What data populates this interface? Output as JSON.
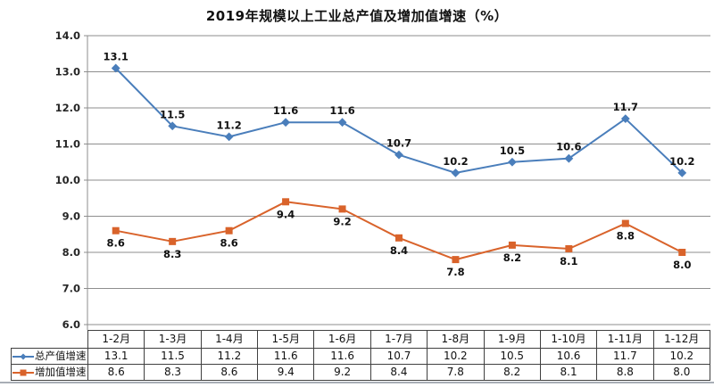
{
  "chart_data": {
    "type": "line",
    "title": "2019年规模以上工业总产值及增加值增速（%）",
    "categories": [
      "1-2月",
      "1-3月",
      "1-4月",
      "1-5月",
      "1-6月",
      "1-7月",
      "1-8月",
      "1-9月",
      "1-10月",
      "1-11月",
      "1-12月"
    ],
    "series": [
      {
        "name": "总产值增速",
        "values": [
          13.1,
          11.5,
          11.2,
          11.6,
          11.6,
          10.7,
          10.2,
          10.5,
          10.6,
          11.7,
          10.2
        ],
        "color": "#4a7ebb",
        "marker": "diamond",
        "label_position": "above"
      },
      {
        "name": "增加值增速",
        "values": [
          8.6,
          8.3,
          8.6,
          9.4,
          9.2,
          8.4,
          7.8,
          8.2,
          8.1,
          8.8,
          8.0
        ],
        "color": "#d9632b",
        "marker": "square",
        "label_position": "below"
      }
    ],
    "ylim": [
      6.0,
      14.0
    ],
    "ytick_interval": 1.0,
    "ytick_labels": [
      "6.0",
      "7.0",
      "8.0",
      "9.0",
      "10.0",
      "11.0",
      "12.0",
      "13.0",
      "14.0"
    ],
    "grid": "horizontal",
    "data_labels": true,
    "legend_position": "data-table"
  },
  "style": {
    "grid_color": "#8e8e8e",
    "axis_color": "#8e8e8e",
    "text_color": "#111111",
    "ylabel_color": "#262626",
    "background": "#ffffff"
  }
}
